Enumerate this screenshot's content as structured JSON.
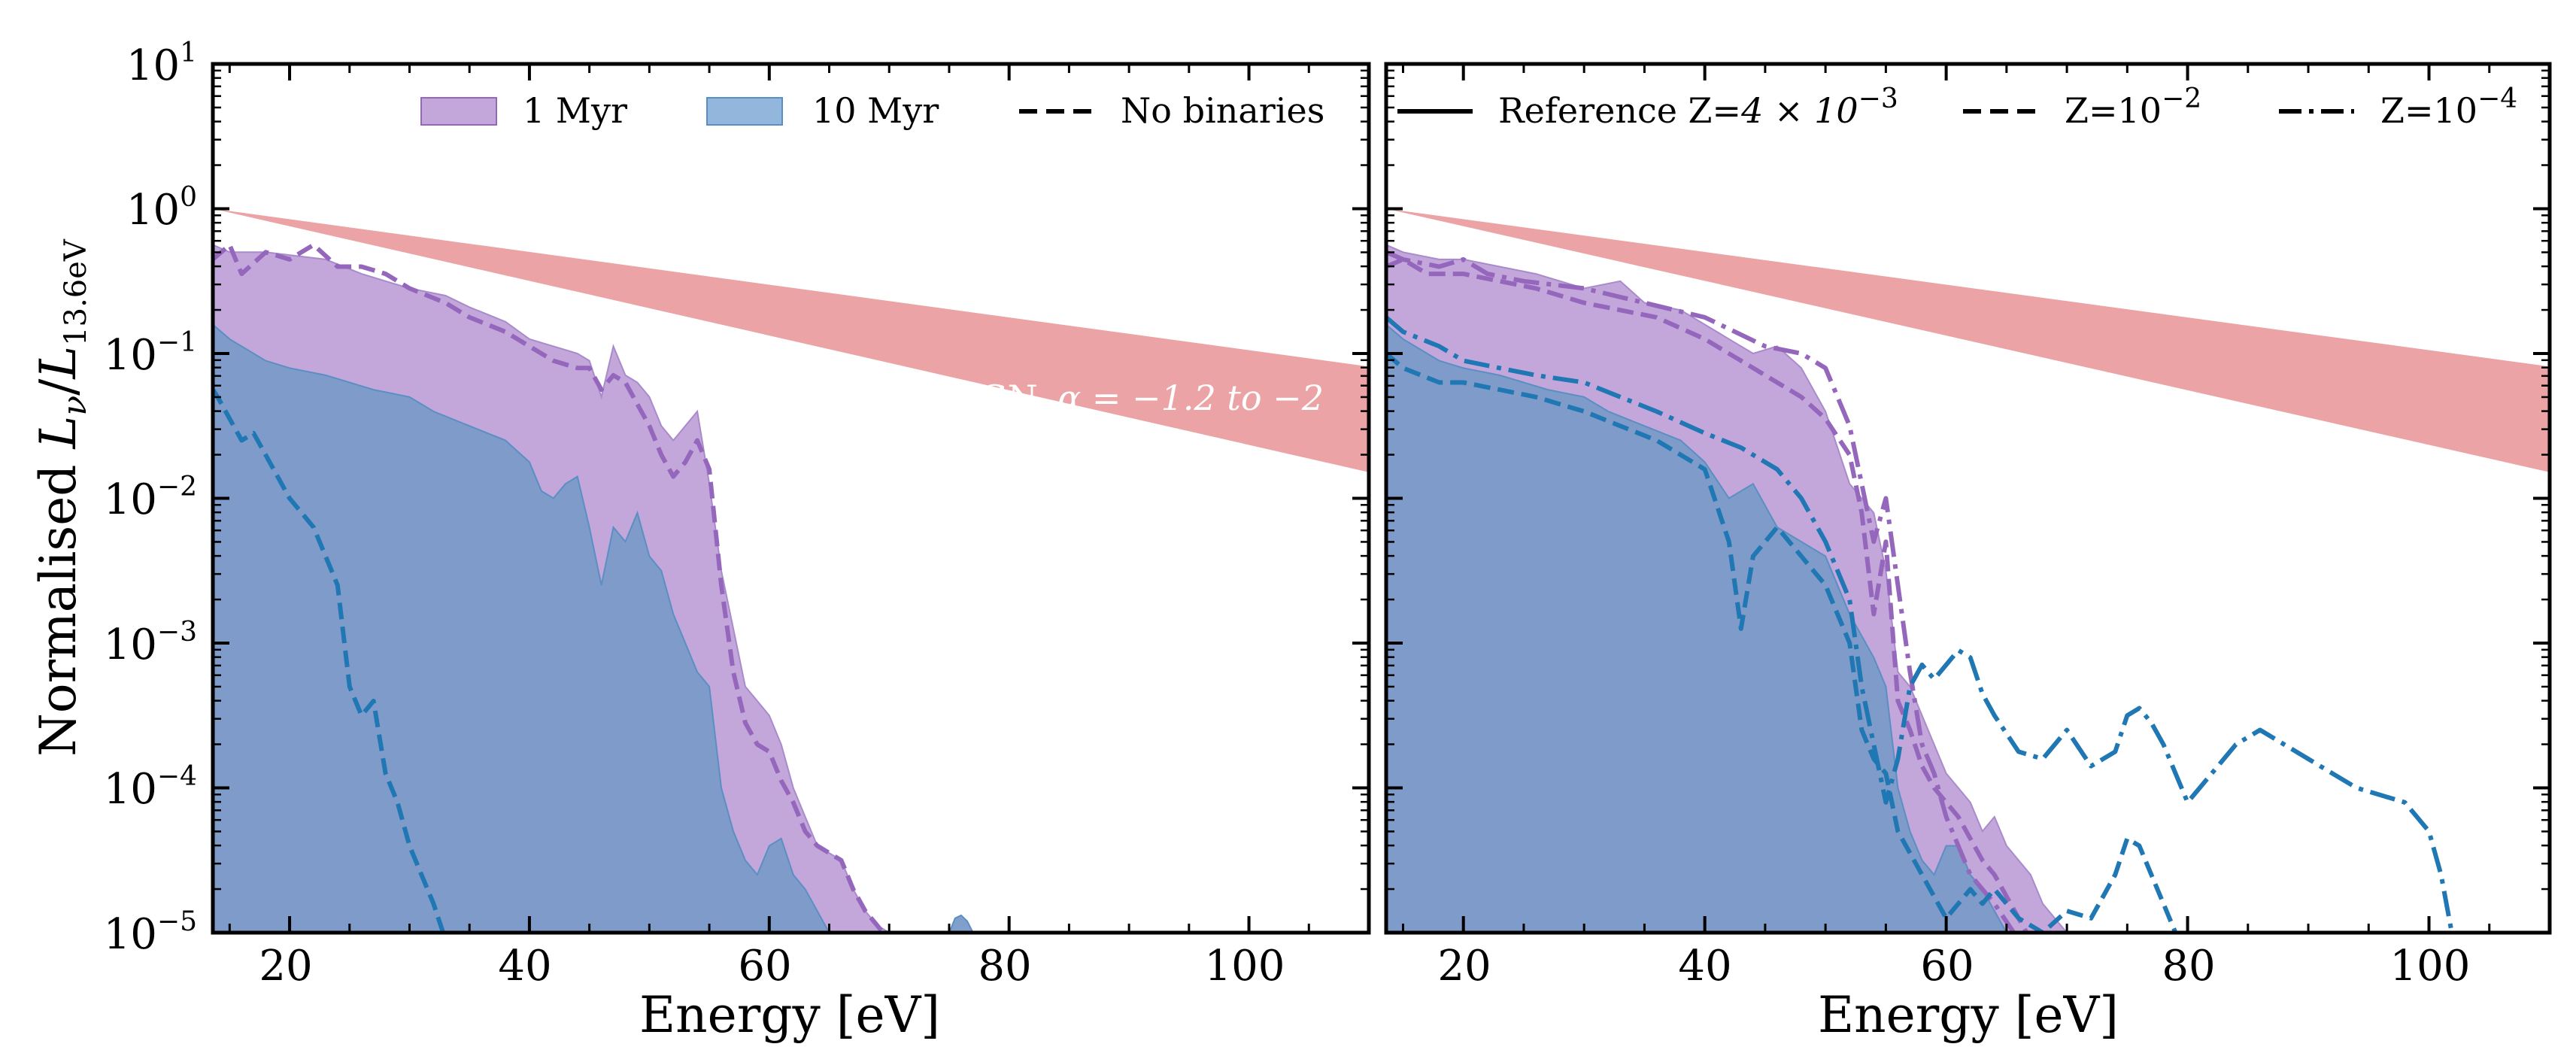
{
  "figure": {
    "ylabel_prefix": "Normalised ",
    "ylabel_math": "L",
    "ylabel_sub1": "ν",
    "ylabel_slash": "/",
    "ylabel_math2": "L",
    "ylabel_sub2": "13.6eV",
    "xlabel": "Energy [eV]"
  },
  "colors": {
    "purple": "#9467bd",
    "purple_fill": "#c3a7db",
    "blue": "#1f77b4",
    "blue_fill": "#7a9ac8",
    "agn_band": "#eba3a5"
  },
  "chart_data": [
    {
      "type": "area",
      "panel": "left",
      "xlabel": "Energy [eV]",
      "ylabel": "Normalised Lν/L13.6eV",
      "xlim": [
        13.6,
        110
      ],
      "ylim_log10": [
        -5,
        1
      ],
      "xticks": [
        20,
        40,
        60,
        80,
        100
      ],
      "yticks": [
        {
          "base": "10",
          "exp": "1"
        },
        {
          "base": "10",
          "exp": "0"
        },
        {
          "base": "10",
          "exp": "−1"
        },
        {
          "base": "10",
          "exp": "−2"
        },
        {
          "base": "10",
          "exp": "−3"
        },
        {
          "base": "10",
          "exp": "−4"
        },
        {
          "base": "10",
          "exp": "−5"
        }
      ],
      "legend": [
        {
          "label": "1 Myr",
          "kind": "patch",
          "color": "#c3a7db"
        },
        {
          "label": "10 Myr",
          "kind": "patch",
          "color": "#7a9ac8"
        },
        {
          "label": "No binaries",
          "kind": "dashed",
          "color": "#000000"
        }
      ],
      "agn_band": {
        "label_prefix": "AGN, ",
        "label_math": "α = −1.2 to −2",
        "alpha_range": [
          -1.2,
          -2
        ],
        "x": [
          13.6,
          110
        ],
        "upper_log10": [
          0.0,
          -1.09
        ],
        "lower_log10": [
          0.0,
          -1.82
        ]
      },
      "series": [
        {
          "name": "1 Myr (binaries)",
          "style": "fill",
          "color": "#c3a7db",
          "x": [
            13.6,
            15,
            18,
            20,
            23,
            26,
            28,
            30,
            33,
            35,
            38,
            40,
            42,
            44,
            45,
            46,
            47,
            48,
            49,
            50,
            51,
            52,
            53,
            54,
            55,
            56,
            57,
            58,
            59,
            60,
            61,
            62,
            63,
            64,
            65,
            66,
            67,
            68,
            69,
            70
          ],
          "log10y": [
            -0.25,
            -0.3,
            -0.3,
            -0.32,
            -0.35,
            -0.45,
            -0.5,
            -0.55,
            -0.6,
            -0.68,
            -0.78,
            -0.9,
            -0.95,
            -1.0,
            -1.05,
            -1.3,
            -0.95,
            -1.15,
            -1.2,
            -1.3,
            -1.5,
            -1.6,
            -1.5,
            -1.4,
            -1.9,
            -2.5,
            -2.9,
            -3.3,
            -3.4,
            -3.5,
            -3.7,
            -4.0,
            -4.2,
            -4.4,
            -4.45,
            -4.5,
            -4.7,
            -4.85,
            -4.95,
            -5.0
          ]
        },
        {
          "name": "10 Myr (binaries)",
          "style": "fill",
          "color": "#7a9ac8",
          "x": [
            13.6,
            15,
            18,
            20,
            23,
            25,
            27,
            30,
            32,
            35,
            38,
            40,
            41,
            42,
            43,
            44,
            45,
            46,
            47,
            48,
            49,
            50,
            51,
            52,
            53,
            54,
            55,
            56,
            57,
            58,
            59,
            60,
            61,
            62,
            63,
            64,
            65
          ],
          "log10y": [
            -0.8,
            -0.9,
            -1.05,
            -1.1,
            -1.15,
            -1.2,
            -1.25,
            -1.3,
            -1.4,
            -1.5,
            -1.6,
            -1.75,
            -1.95,
            -2.0,
            -1.9,
            -1.85,
            -2.2,
            -2.6,
            -2.2,
            -2.3,
            -2.1,
            -2.4,
            -2.5,
            -2.8,
            -3.0,
            -3.2,
            -3.3,
            -4.0,
            -4.3,
            -4.5,
            -4.6,
            -4.4,
            -4.35,
            -4.6,
            -4.7,
            -4.85,
            -5.0
          ]
        },
        {
          "name": "1 Myr no binaries",
          "style": "dashed",
          "color": "#9467bd",
          "x": [
            13.6,
            15,
            16,
            18,
            20,
            22,
            24,
            26,
            28,
            30,
            33,
            35,
            38,
            40,
            42,
            44,
            45,
            46,
            47,
            48,
            49,
            50,
            51,
            52,
            53,
            54,
            55,
            56,
            57,
            58,
            59,
            60,
            61,
            62,
            63,
            64,
            65,
            66,
            67,
            68,
            69,
            70
          ],
          "log10y": [
            -0.35,
            -0.25,
            -0.45,
            -0.3,
            -0.35,
            -0.25,
            -0.4,
            -0.4,
            -0.45,
            -0.55,
            -0.65,
            -0.75,
            -0.85,
            -0.95,
            -1.05,
            -1.1,
            -1.1,
            -1.25,
            -1.15,
            -1.2,
            -1.35,
            -1.5,
            -1.7,
            -1.85,
            -1.75,
            -1.6,
            -1.8,
            -2.6,
            -3.2,
            -3.55,
            -3.7,
            -3.75,
            -3.95,
            -4.1,
            -4.3,
            -4.4,
            -4.45,
            -4.5,
            -4.7,
            -4.85,
            -4.95,
            -5.05
          ]
        },
        {
          "name": "10 Myr no binaries",
          "style": "dashed",
          "color": "#1f77b4",
          "x": [
            13.6,
            14,
            15,
            16,
            17,
            18,
            19,
            20,
            21,
            22,
            23,
            24,
            25,
            26,
            27,
            28,
            29,
            30,
            31,
            32,
            33
          ],
          "log10y": [
            -1.25,
            -1.3,
            -1.45,
            -1.6,
            -1.55,
            -1.7,
            -1.85,
            -2.0,
            -2.1,
            -2.2,
            -2.4,
            -2.6,
            -3.3,
            -3.5,
            -3.4,
            -3.9,
            -4.1,
            -4.4,
            -4.6,
            -4.8,
            -5.05
          ]
        },
        {
          "name": "10 Myr bump",
          "style": "fill",
          "color": "#7a9ac8",
          "x": [
            75,
            75.5,
            76,
            76.5,
            77
          ],
          "log10y": [
            -5.0,
            -4.9,
            -4.88,
            -4.92,
            -5.0
          ]
        }
      ]
    },
    {
      "type": "line",
      "panel": "right",
      "xlabel": "Energy [eV]",
      "xlim": [
        13.6,
        110
      ],
      "ylim_log10": [
        -5,
        1
      ],
      "xticks": [
        20,
        40,
        60,
        80,
        100
      ],
      "legend": [
        {
          "label": "Reference Z=",
          "math": "4 × 10",
          "exp": "−3",
          "kind": "solid",
          "color": "#000000"
        },
        {
          "label": "Z=",
          "math": "10",
          "exp": "−2",
          "kind": "dashed",
          "color": "#000000"
        },
        {
          "label": "Z=",
          "math": "10",
          "exp": "−4",
          "kind": "dashdot",
          "color": "#000000"
        }
      ],
      "agn_band": {
        "x": [
          13.6,
          110
        ],
        "upper_log10": [
          0.0,
          -1.09
        ],
        "lower_log10": [
          0.0,
          -1.82
        ]
      },
      "series": [
        {
          "name": "1 Myr reference",
          "style": "fill",
          "color": "#c3a7db",
          "x": [
            13.6,
            15,
            18,
            20,
            23,
            26,
            30,
            33,
            35,
            38,
            40,
            42,
            44,
            46,
            48,
            50,
            52,
            54,
            55,
            56,
            57,
            58,
            59,
            60,
            61,
            62,
            63,
            64,
            65,
            66,
            67,
            68,
            69,
            70
          ],
          "log10y": [
            -0.25,
            -0.3,
            -0.35,
            -0.35,
            -0.4,
            -0.45,
            -0.55,
            -0.5,
            -0.65,
            -0.7,
            -0.8,
            -0.9,
            -1.0,
            -0.95,
            -1.1,
            -1.4,
            -1.9,
            -2.1,
            -2.5,
            -3.2,
            -3.3,
            -3.5,
            -3.7,
            -3.9,
            -4.0,
            -4.1,
            -4.3,
            -4.2,
            -4.4,
            -4.5,
            -4.6,
            -4.8,
            -4.9,
            -5.0
          ]
        },
        {
          "name": "10 Myr reference",
          "style": "fill",
          "color": "#7a9ac8",
          "x": [
            13.6,
            15,
            18,
            20,
            23,
            25,
            27,
            30,
            32,
            35,
            38,
            40,
            42,
            44,
            46,
            48,
            50,
            52,
            54,
            55,
            56,
            57,
            58,
            59,
            60,
            61,
            62,
            63,
            64,
            65
          ],
          "log10y": [
            -0.8,
            -0.9,
            -1.05,
            -1.1,
            -1.15,
            -1.2,
            -1.25,
            -1.3,
            -1.4,
            -1.5,
            -1.6,
            -1.75,
            -2.0,
            -1.9,
            -2.2,
            -2.3,
            -2.4,
            -2.8,
            -3.1,
            -3.3,
            -4.0,
            -4.3,
            -4.5,
            -4.6,
            -4.4,
            -4.4,
            -4.6,
            -4.7,
            -4.85,
            -5.0
          ]
        },
        {
          "name": "1 Myr Z=10^-2",
          "style": "dashed",
          "color": "#9467bd",
          "x": [
            13.6,
            15,
            17,
            20,
            23,
            26,
            30,
            33,
            36,
            40,
            43,
            46,
            48,
            50,
            52,
            53,
            54,
            55,
            56,
            57,
            58,
            59,
            60,
            61,
            62,
            63,
            64,
            65,
            66,
            67
          ],
          "log10y": [
            -0.4,
            -0.35,
            -0.45,
            -0.45,
            -0.5,
            -0.55,
            -0.65,
            -0.7,
            -0.75,
            -0.9,
            -1.05,
            -1.2,
            -1.3,
            -1.45,
            -1.7,
            -2.1,
            -2.8,
            -2.3,
            -3.4,
            -3.6,
            -3.85,
            -4.0,
            -4.1,
            -4.2,
            -4.35,
            -4.5,
            -4.6,
            -4.75,
            -4.9,
            -5.05
          ]
        },
        {
          "name": "1 Myr Z=10^-4",
          "style": "dashdot",
          "color": "#9467bd",
          "x": [
            13.6,
            15,
            18,
            20,
            22,
            25,
            30,
            35,
            40,
            45,
            48,
            50,
            52,
            53,
            54,
            55,
            56,
            57,
            58,
            59,
            60,
            61,
            62,
            64,
            66
          ],
          "log10y": [
            -0.3,
            -0.35,
            -0.4,
            -0.35,
            -0.45,
            -0.5,
            -0.55,
            -0.65,
            -0.75,
            -0.95,
            -1.0,
            -1.1,
            -1.5,
            -1.9,
            -2.3,
            -2.0,
            -2.6,
            -3.2,
            -3.7,
            -3.9,
            -4.2,
            -4.4,
            -4.6,
            -4.8,
            -5.05
          ]
        },
        {
          "name": "10 Myr Z=10^-2",
          "style": "dashed",
          "color": "#1f77b4",
          "x": [
            13.6,
            15,
            18,
            20,
            23,
            26,
            30,
            33,
            36,
            40,
            42,
            43,
            44,
            46,
            48,
            50,
            52,
            53,
            54,
            55,
            56,
            58,
            60,
            62,
            63,
            64,
            66,
            68,
            70,
            72,
            74,
            75,
            76,
            77,
            78,
            79,
            80
          ],
          "log10y": [
            -1.0,
            -1.1,
            -1.2,
            -1.2,
            -1.25,
            -1.3,
            -1.4,
            -1.5,
            -1.6,
            -1.8,
            -2.3,
            -2.9,
            -2.4,
            -2.2,
            -2.4,
            -2.6,
            -3.0,
            -3.6,
            -3.8,
            -3.9,
            -4.3,
            -4.6,
            -4.9,
            -4.7,
            -4.8,
            -4.7,
            -4.9,
            -5.0,
            -4.85,
            -4.9,
            -4.6,
            -4.35,
            -4.4,
            -4.6,
            -4.8,
            -5.0,
            -5.1
          ]
        },
        {
          "name": "10 Myr Z=10^-4",
          "style": "dashdot",
          "color": "#1f77b4",
          "x": [
            13.6,
            15,
            18,
            20,
            23,
            26,
            30,
            33,
            36,
            40,
            43,
            46,
            48,
            50,
            52,
            53,
            54,
            55,
            56,
            57,
            58,
            59,
            60,
            61,
            62,
            63,
            64,
            66,
            68,
            70,
            72,
            74,
            75,
            76,
            77,
            78,
            80,
            82,
            84,
            86,
            88,
            90,
            92,
            94,
            96,
            98,
            100,
            101,
            102
          ],
          "log10y": [
            -0.75,
            -0.85,
            -0.95,
            -1.05,
            -1.1,
            -1.15,
            -1.2,
            -1.3,
            -1.4,
            -1.55,
            -1.65,
            -1.8,
            -2.0,
            -2.3,
            -2.7,
            -3.3,
            -3.7,
            -4.1,
            -3.8,
            -3.3,
            -3.15,
            -3.25,
            -3.15,
            -3.05,
            -3.1,
            -3.35,
            -3.5,
            -3.75,
            -3.8,
            -3.6,
            -3.85,
            -3.75,
            -3.5,
            -3.45,
            -3.55,
            -3.7,
            -4.1,
            -3.9,
            -3.7,
            -3.6,
            -3.7,
            -3.8,
            -3.9,
            -4.0,
            -4.05,
            -4.1,
            -4.3,
            -4.6,
            -5.05
          ]
        }
      ]
    }
  ]
}
